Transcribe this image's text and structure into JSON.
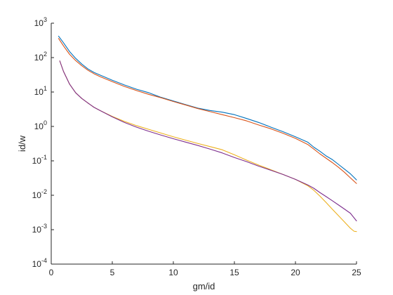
{
  "chart_data": {
    "type": "line",
    "title": "",
    "xlabel": "gm/id",
    "ylabel": "id/w",
    "xlim": [
      0,
      25
    ],
    "ylim": [
      0.0001,
      1000
    ],
    "yscale": "log",
    "grid": false,
    "x_ticks": [
      0,
      5,
      10,
      15,
      20,
      25
    ],
    "x_tick_labels": [
      "0",
      "5",
      "10",
      "15",
      "20",
      "25"
    ],
    "y_tick_values": [
      0.0001,
      0.001,
      0.01,
      0.1,
      1,
      10,
      100,
      1000
    ],
    "y_tick_labels": [
      {
        "base": "10",
        "exp": "-4"
      },
      {
        "base": "10",
        "exp": "-3"
      },
      {
        "base": "10",
        "exp": "-2"
      },
      {
        "base": "10",
        "exp": "-1"
      },
      {
        "base": "10",
        "exp": "0"
      },
      {
        "base": "10",
        "exp": "1"
      },
      {
        "base": "10",
        "exp": "2"
      },
      {
        "base": "10",
        "exp": "3"
      }
    ],
    "series": [
      {
        "color": "#0072bd",
        "x": [
          0.6,
          1,
          1.5,
          2,
          2.5,
          3,
          3.5,
          4,
          5,
          6,
          7,
          8,
          9,
          10,
          11,
          12,
          13,
          14,
          15,
          16,
          17,
          18,
          19,
          20,
          21,
          21.5,
          22,
          22.5,
          23,
          23.5,
          24,
          24.5,
          25
        ],
        "y": [
          420,
          270,
          150,
          95,
          65,
          47,
          37,
          31,
          22,
          16,
          12,
          9.5,
          7,
          5.5,
          4.3,
          3.4,
          2.9,
          2.6,
          2.2,
          1.7,
          1.3,
          0.95,
          0.7,
          0.5,
          0.35,
          0.25,
          0.19,
          0.14,
          0.11,
          0.08,
          0.058,
          0.042,
          0.028
        ]
      },
      {
        "color": "#d95319",
        "x": [
          0.6,
          1,
          1.5,
          2,
          2.5,
          3,
          3.5,
          4,
          5,
          6,
          7,
          8,
          9,
          10,
          11,
          12,
          13,
          14,
          15,
          16,
          17,
          18,
          19,
          20,
          21,
          21.5,
          22,
          22.5,
          23,
          23.5,
          24,
          24.5,
          25
        ],
        "y": [
          360,
          220,
          125,
          82,
          58,
          43,
          34,
          28,
          20,
          14.5,
          11,
          8.5,
          6.8,
          5.3,
          4.2,
          3.3,
          2.7,
          2.2,
          1.8,
          1.45,
          1.1,
          0.85,
          0.63,
          0.45,
          0.3,
          0.22,
          0.16,
          0.12,
          0.09,
          0.066,
          0.047,
          0.032,
          0.022
        ]
      },
      {
        "color": "#edb120",
        "x": [
          0.7,
          1,
          1.5,
          2,
          2.5,
          3,
          3.5,
          4,
          5,
          6,
          7,
          8,
          9,
          10,
          11,
          12,
          13,
          14,
          15,
          16,
          17,
          18,
          19,
          20,
          21,
          21.5,
          22,
          22.5,
          23,
          23.5,
          24,
          24.5,
          24.8,
          25
        ],
        "y": [
          80,
          40,
          17,
          9.5,
          6.5,
          4.8,
          3.6,
          2.9,
          1.95,
          1.4,
          1.05,
          0.82,
          0.64,
          0.5,
          0.4,
          0.32,
          0.26,
          0.21,
          0.15,
          0.105,
          0.075,
          0.055,
          0.04,
          0.029,
          0.019,
          0.014,
          0.0095,
          0.0062,
          0.004,
          0.0026,
          0.0017,
          0.0011,
          0.0009,
          0.00088
        ]
      },
      {
        "color": "#7e2f8e",
        "x": [
          0.7,
          1,
          1.5,
          2,
          2.5,
          3,
          3.5,
          4,
          5,
          6,
          7,
          8,
          9,
          10,
          11,
          12,
          13,
          14,
          15,
          16,
          17,
          18,
          19,
          20,
          21,
          21.5,
          22,
          22.5,
          23,
          23.5,
          24,
          24.5,
          25
        ],
        "y": [
          80,
          40,
          17,
          9.5,
          6.5,
          4.8,
          3.6,
          2.9,
          1.9,
          1.3,
          0.95,
          0.72,
          0.56,
          0.44,
          0.35,
          0.28,
          0.22,
          0.17,
          0.125,
          0.095,
          0.07,
          0.053,
          0.04,
          0.029,
          0.02,
          0.016,
          0.012,
          0.0092,
          0.007,
          0.0053,
          0.004,
          0.003,
          0.0018
        ]
      }
    ]
  }
}
